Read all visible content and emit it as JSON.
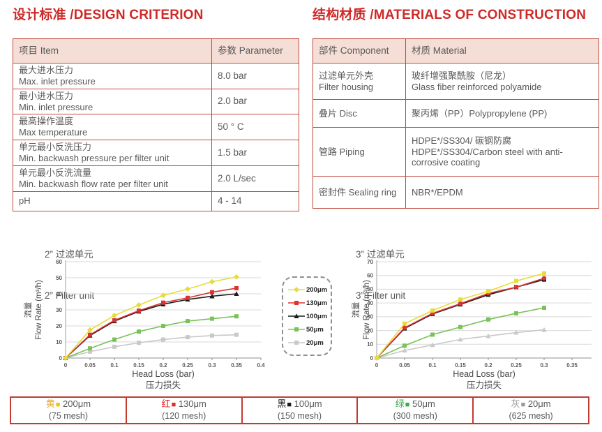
{
  "colors": {
    "title_red": "#ce2a28",
    "table_border": "#bf4a3c",
    "table_header_bg": "#f5ded5",
    "text_gray": "#58595b"
  },
  "headings": {
    "design": "设计标准 /DESIGN CRITERION",
    "materials": "结构材质 /MATERIALS OF CONSTRUCTION"
  },
  "design_table": {
    "headers": [
      "项目 Item",
      "参数 Parameter"
    ],
    "rows": [
      {
        "zh": "最大进水压力",
        "en": "Max. inlet pressure",
        "value": "8.0 bar"
      },
      {
        "zh": "最小进水压力",
        "en": "Min. inlet pressure",
        "value": "2.0 bar"
      },
      {
        "zh": "最高操作温度",
        "en": "Max temperature",
        "value": "50 ° C"
      },
      {
        "zh": "单元最小反洗压力",
        "en": "Min. backwash pressure per filter unit",
        "value": "1.5 bar"
      },
      {
        "zh": "单元最小反洗流量",
        "en": "Min. backwash flow rate per filter unit",
        "value": "2.0 L/sec"
      },
      {
        "zh": "pH",
        "en": "",
        "value": "4 - 14"
      }
    ]
  },
  "materials_table": {
    "headers": [
      "部件 Component",
      "材质 Material"
    ],
    "rows": [
      {
        "c_zh": "过滤单元外壳",
        "c_en": "Filter housing",
        "m_zh": "玻纤增强聚酰胺（尼龙）",
        "m_en": "Glass fiber reinforced polyamide"
      },
      {
        "c_zh": "叠片 Disc",
        "c_en": "",
        "m_zh": "聚丙烯（PP）Polypropylene (PP)",
        "m_en": ""
      },
      {
        "c_zh": "管路 Piping",
        "c_en": "",
        "m_zh": "HDPE*/SS304/ 碳钢防腐",
        "m_en": "HDPE*/SS304/Carbon steel with anti-corrosive coating"
      },
      {
        "c_zh": "密封件 Sealing ring",
        "c_en": "",
        "m_zh": "NBR*/EPDM",
        "m_en": ""
      }
    ]
  },
  "chart_data": [
    {
      "type": "line",
      "title_zh": "2” 过滤单元",
      "title_en": "2” Filter unit",
      "xlabel": "Head Loss (bar)",
      "xlabel_zh": "压力损失",
      "ylabel_zh": "流量",
      "ylabel": "Flow Rate (m³/h)",
      "xlim": [
        0,
        0.4
      ],
      "ylim": [
        0,
        60
      ],
      "xticks": [
        "0",
        "0.05",
        "0.1",
        "0.15",
        "0.2",
        "0.25",
        "0.3",
        "0.35",
        "0.4"
      ],
      "yticks": [
        "0",
        "10",
        "20",
        "30",
        "40",
        "50",
        "60"
      ],
      "grid": "horizontal",
      "legend_position": "right-outside",
      "x": [
        0,
        0.05,
        0.1,
        0.15,
        0.2,
        0.25,
        0.3,
        0.35
      ],
      "series": [
        {
          "name": "200μm",
          "color": "#e5dd3a",
          "marker": "diamond",
          "values": [
            0,
            17.5,
            26.5,
            33,
            39,
            43,
            47.5,
            50.5
          ]
        },
        {
          "name": "130μm",
          "color": "#dd3232",
          "marker": "square",
          "values": [
            0,
            14.5,
            23.5,
            29.5,
            34.5,
            37.5,
            41,
            43.5
          ]
        },
        {
          "name": "100μm",
          "color": "#1c1c1c",
          "marker": "triangle",
          "values": [
            0,
            14,
            23,
            29,
            33.5,
            36.5,
            38.5,
            40
          ]
        },
        {
          "name": "50μm",
          "color": "#79c258",
          "marker": "square",
          "values": [
            0,
            6,
            11.5,
            16.5,
            20,
            23,
            24.5,
            26
          ]
        },
        {
          "name": "20μm",
          "color": "#c9c9c9",
          "marker": "square",
          "values": [
            0,
            4,
            7,
            9.5,
            11.5,
            13,
            14,
            14.5
          ]
        }
      ]
    },
    {
      "type": "line",
      "title_zh": "3” 过滤单元",
      "title_en": "3” Filter unit",
      "xlabel": "Head Loss (bar)",
      "xlabel_zh": "压力损失",
      "ylabel_zh": "流量",
      "ylabel": "Flow Rate (m³/h)",
      "xlim": [
        0,
        0.35
      ],
      "ylim": [
        0,
        70
      ],
      "xticks": [
        "0",
        "0.05",
        "0.1",
        "0.15",
        "0.2",
        "0.25",
        "0.3",
        "0.35"
      ],
      "yticks": [
        "0",
        "10",
        "20",
        "30",
        "40",
        "50",
        "60",
        "70"
      ],
      "grid": "horizontal",
      "legend_position": "left-outside",
      "x": [
        0,
        0.05,
        0.1,
        0.15,
        0.2,
        0.25,
        0.3
      ],
      "series": [
        {
          "name": "200μm",
          "color": "#e5dd3a",
          "marker": "square",
          "values": [
            0,
            25,
            34.5,
            42.5,
            48.5,
            56,
            61.5
          ]
        },
        {
          "name": "130μm",
          "color": "#dd3232",
          "marker": "circle",
          "values": [
            0,
            22,
            32.5,
            39.5,
            47,
            51.5,
            58
          ]
        },
        {
          "name": "100μm",
          "color": "#1c1c1c",
          "marker": "square",
          "values": [
            0,
            21.5,
            32,
            39,
            46,
            51.5,
            57
          ]
        },
        {
          "name": "50μm",
          "color": "#79c258",
          "marker": "square",
          "values": [
            0,
            9,
            17,
            22.5,
            28,
            32.5,
            36.5
          ]
        },
        {
          "name": "20μm",
          "color": "#c9c9c9",
          "marker": "triangle",
          "values": [
            0,
            5.5,
            9.5,
            13.5,
            16,
            18.5,
            20.5
          ]
        }
      ]
    }
  ],
  "legend_box": {
    "entries": [
      {
        "label": "200μm",
        "color": "#e5dd3a",
        "marker": "diamond"
      },
      {
        "label": "130μm",
        "color": "#dd3232",
        "marker": "square"
      },
      {
        "label": "100μm",
        "color": "#1c1c1c",
        "marker": "triangle"
      },
      {
        "label": "50μm",
        "color": "#79c258",
        "marker": "square"
      },
      {
        "label": "20μm",
        "color": "#c9c9c9",
        "marker": "square"
      }
    ]
  },
  "bottom_legend": {
    "cells": [
      {
        "zh": "黄",
        "zh_color": "#eaa92a",
        "swatch": "#f2c11d",
        "size": "200μm",
        "mesh": "(75 mesh)"
      },
      {
        "zh": "红",
        "zh_color": "#e42b2b",
        "swatch": "#e42b2b",
        "size": "130μm",
        "mesh": "(120 mesh)"
      },
      {
        "zh": "黑",
        "zh_color": "#1c1c1c",
        "swatch": "#1c1c1c",
        "size": "100μm",
        "mesh": "(150 mesh)"
      },
      {
        "zh": "绿",
        "zh_color": "#3dab4d",
        "swatch": "#3dab4d",
        "size": "50μm",
        "mesh": "(300 mesh)"
      },
      {
        "zh": "灰",
        "zh_color": "#9b9b9b",
        "swatch": "#9b9b9b",
        "size": "20μm",
        "mesh": "(625 mesh)"
      }
    ]
  }
}
